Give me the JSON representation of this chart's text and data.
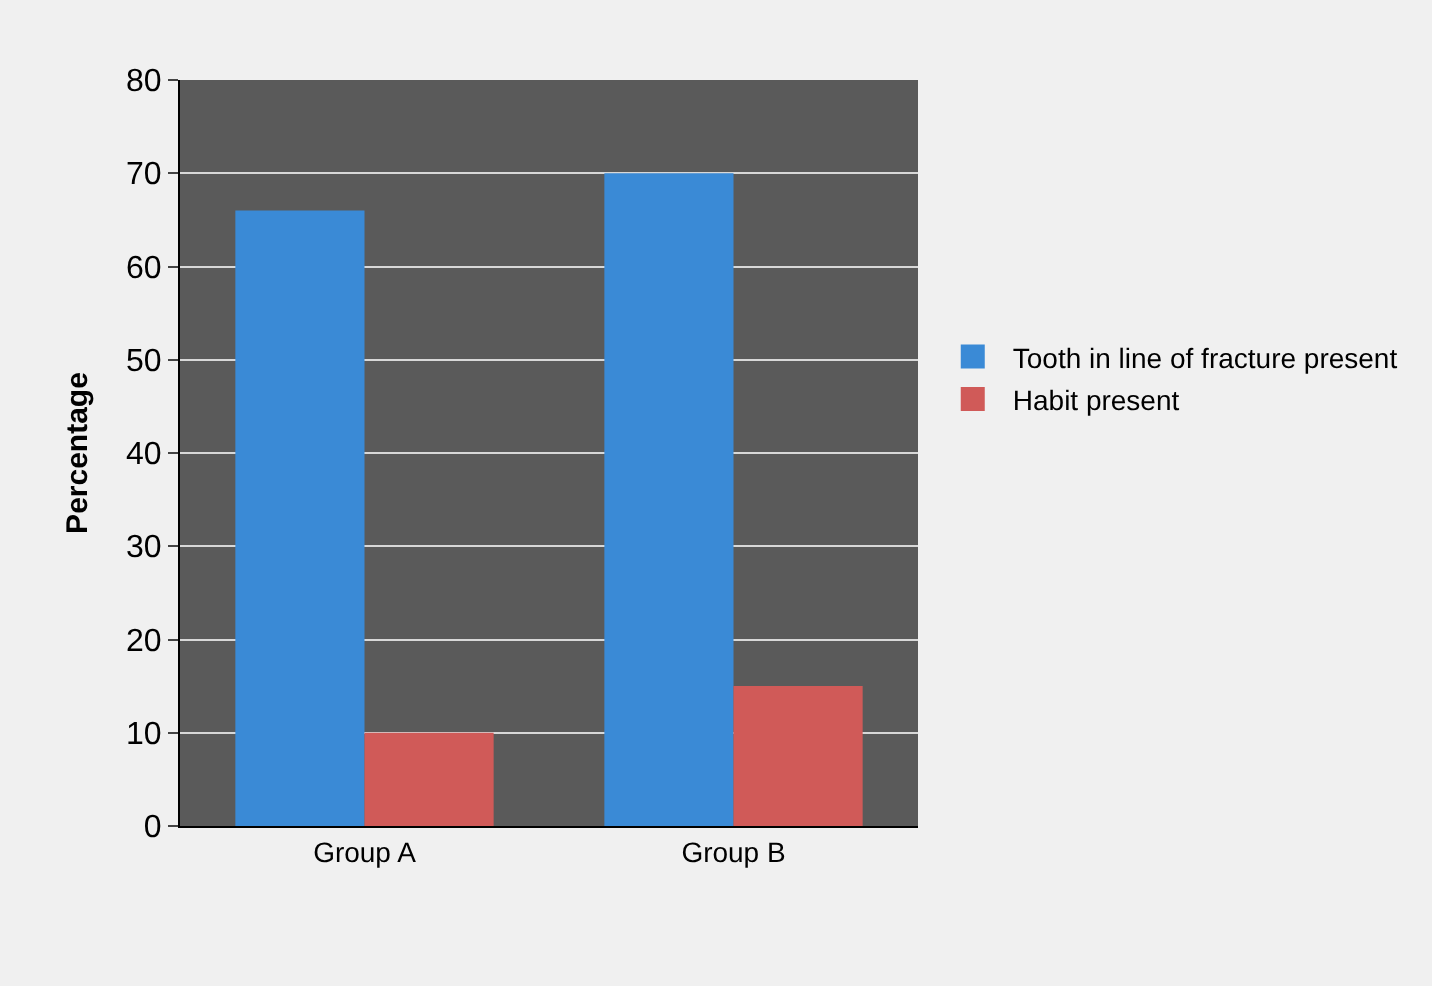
{
  "chart_data": {
    "type": "bar",
    "ylabel": "Percentage",
    "categories": [
      "Group A",
      "Group B"
    ],
    "series": [
      {
        "name": "Tooth in line of fracture present",
        "color": "#3a8ad6",
        "values": [
          66,
          70
        ]
      },
      {
        "name": "Habit present",
        "color": "#d05a58",
        "values": [
          10,
          15
        ]
      }
    ],
    "ylim": [
      0,
      80
    ],
    "yticks": [
      0,
      10,
      20,
      30,
      40,
      50,
      60,
      70,
      80
    ],
    "grid": "y",
    "legend": "right"
  }
}
